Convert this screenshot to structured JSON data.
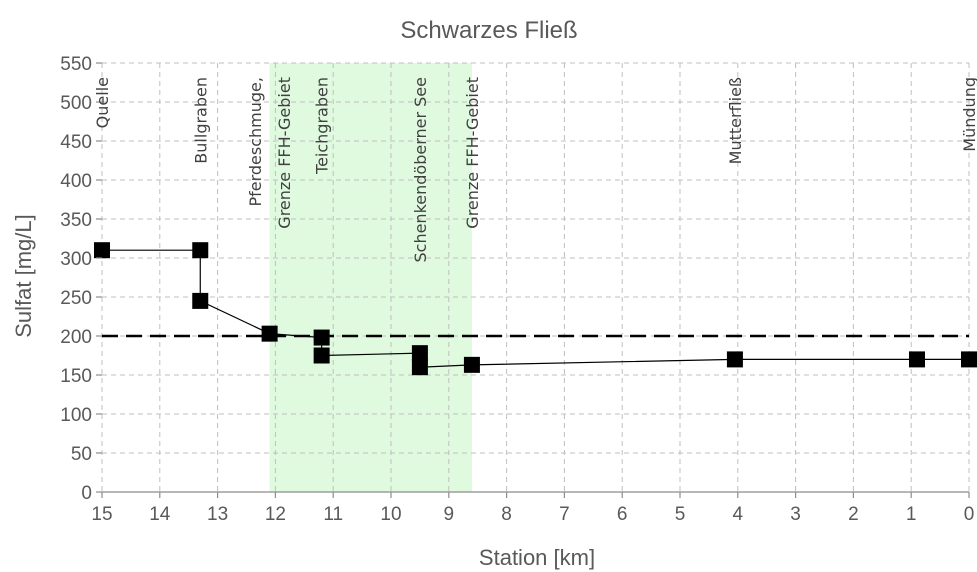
{
  "chart_data": {
    "type": "scatter",
    "title": "Schwarzes Fließ",
    "xlabel": "Station [km]",
    "ylabel": "Sulfat [mg/L]",
    "xlim": [
      15,
      0
    ],
    "ylim": [
      0,
      550
    ],
    "x_ticks": [
      15,
      14,
      13,
      12,
      11,
      10,
      9,
      8,
      7,
      6,
      5,
      4,
      3,
      2,
      1,
      0
    ],
    "y_ticks": [
      0,
      50,
      100,
      150,
      200,
      250,
      300,
      350,
      400,
      450,
      500,
      550
    ],
    "grid": true,
    "legend": "none",
    "threshold": {
      "y": 200,
      "style": "dashed"
    },
    "highlight_band": {
      "x_from": 12.1,
      "x_to": 8.6,
      "color": "#ccf7cc"
    },
    "annotations": [
      {
        "text": "Quelle",
        "x": 15.0
      },
      {
        "text": "Bullgraben",
        "x": 13.3
      },
      {
        "text": "Pferdeschmuge,",
        "x": 12.35
      },
      {
        "text": "Grenze FFH-Gebiet",
        "x": 11.85
      },
      {
        "text": "Teichgraben",
        "x": 11.2
      },
      {
        "text": "Schenkendöberner See",
        "x": 9.5
      },
      {
        "text": "Grenze FFH-Gebiet",
        "x": 8.6
      },
      {
        "text": "Mutterfließ",
        "x": 4.05
      },
      {
        "text": "Mündung",
        "x": 0.0
      }
    ],
    "series": [
      {
        "color": "#000000",
        "points": [
          {
            "x": 15.0,
            "y": 310
          },
          {
            "x": 13.3,
            "y": 310
          },
          {
            "x": 13.3,
            "y": 245
          },
          {
            "x": 12.1,
            "y": 203
          },
          {
            "x": 11.2,
            "y": 198
          },
          {
            "x": 11.2,
            "y": 175
          },
          {
            "x": 9.5,
            "y": 178
          },
          {
            "x": 9.5,
            "y": 160
          },
          {
            "x": 8.6,
            "y": 163
          },
          {
            "x": 4.05,
            "y": 170
          },
          {
            "x": 0.9,
            "y": 170
          },
          {
            "x": 0.0,
            "y": 170
          }
        ]
      }
    ]
  }
}
